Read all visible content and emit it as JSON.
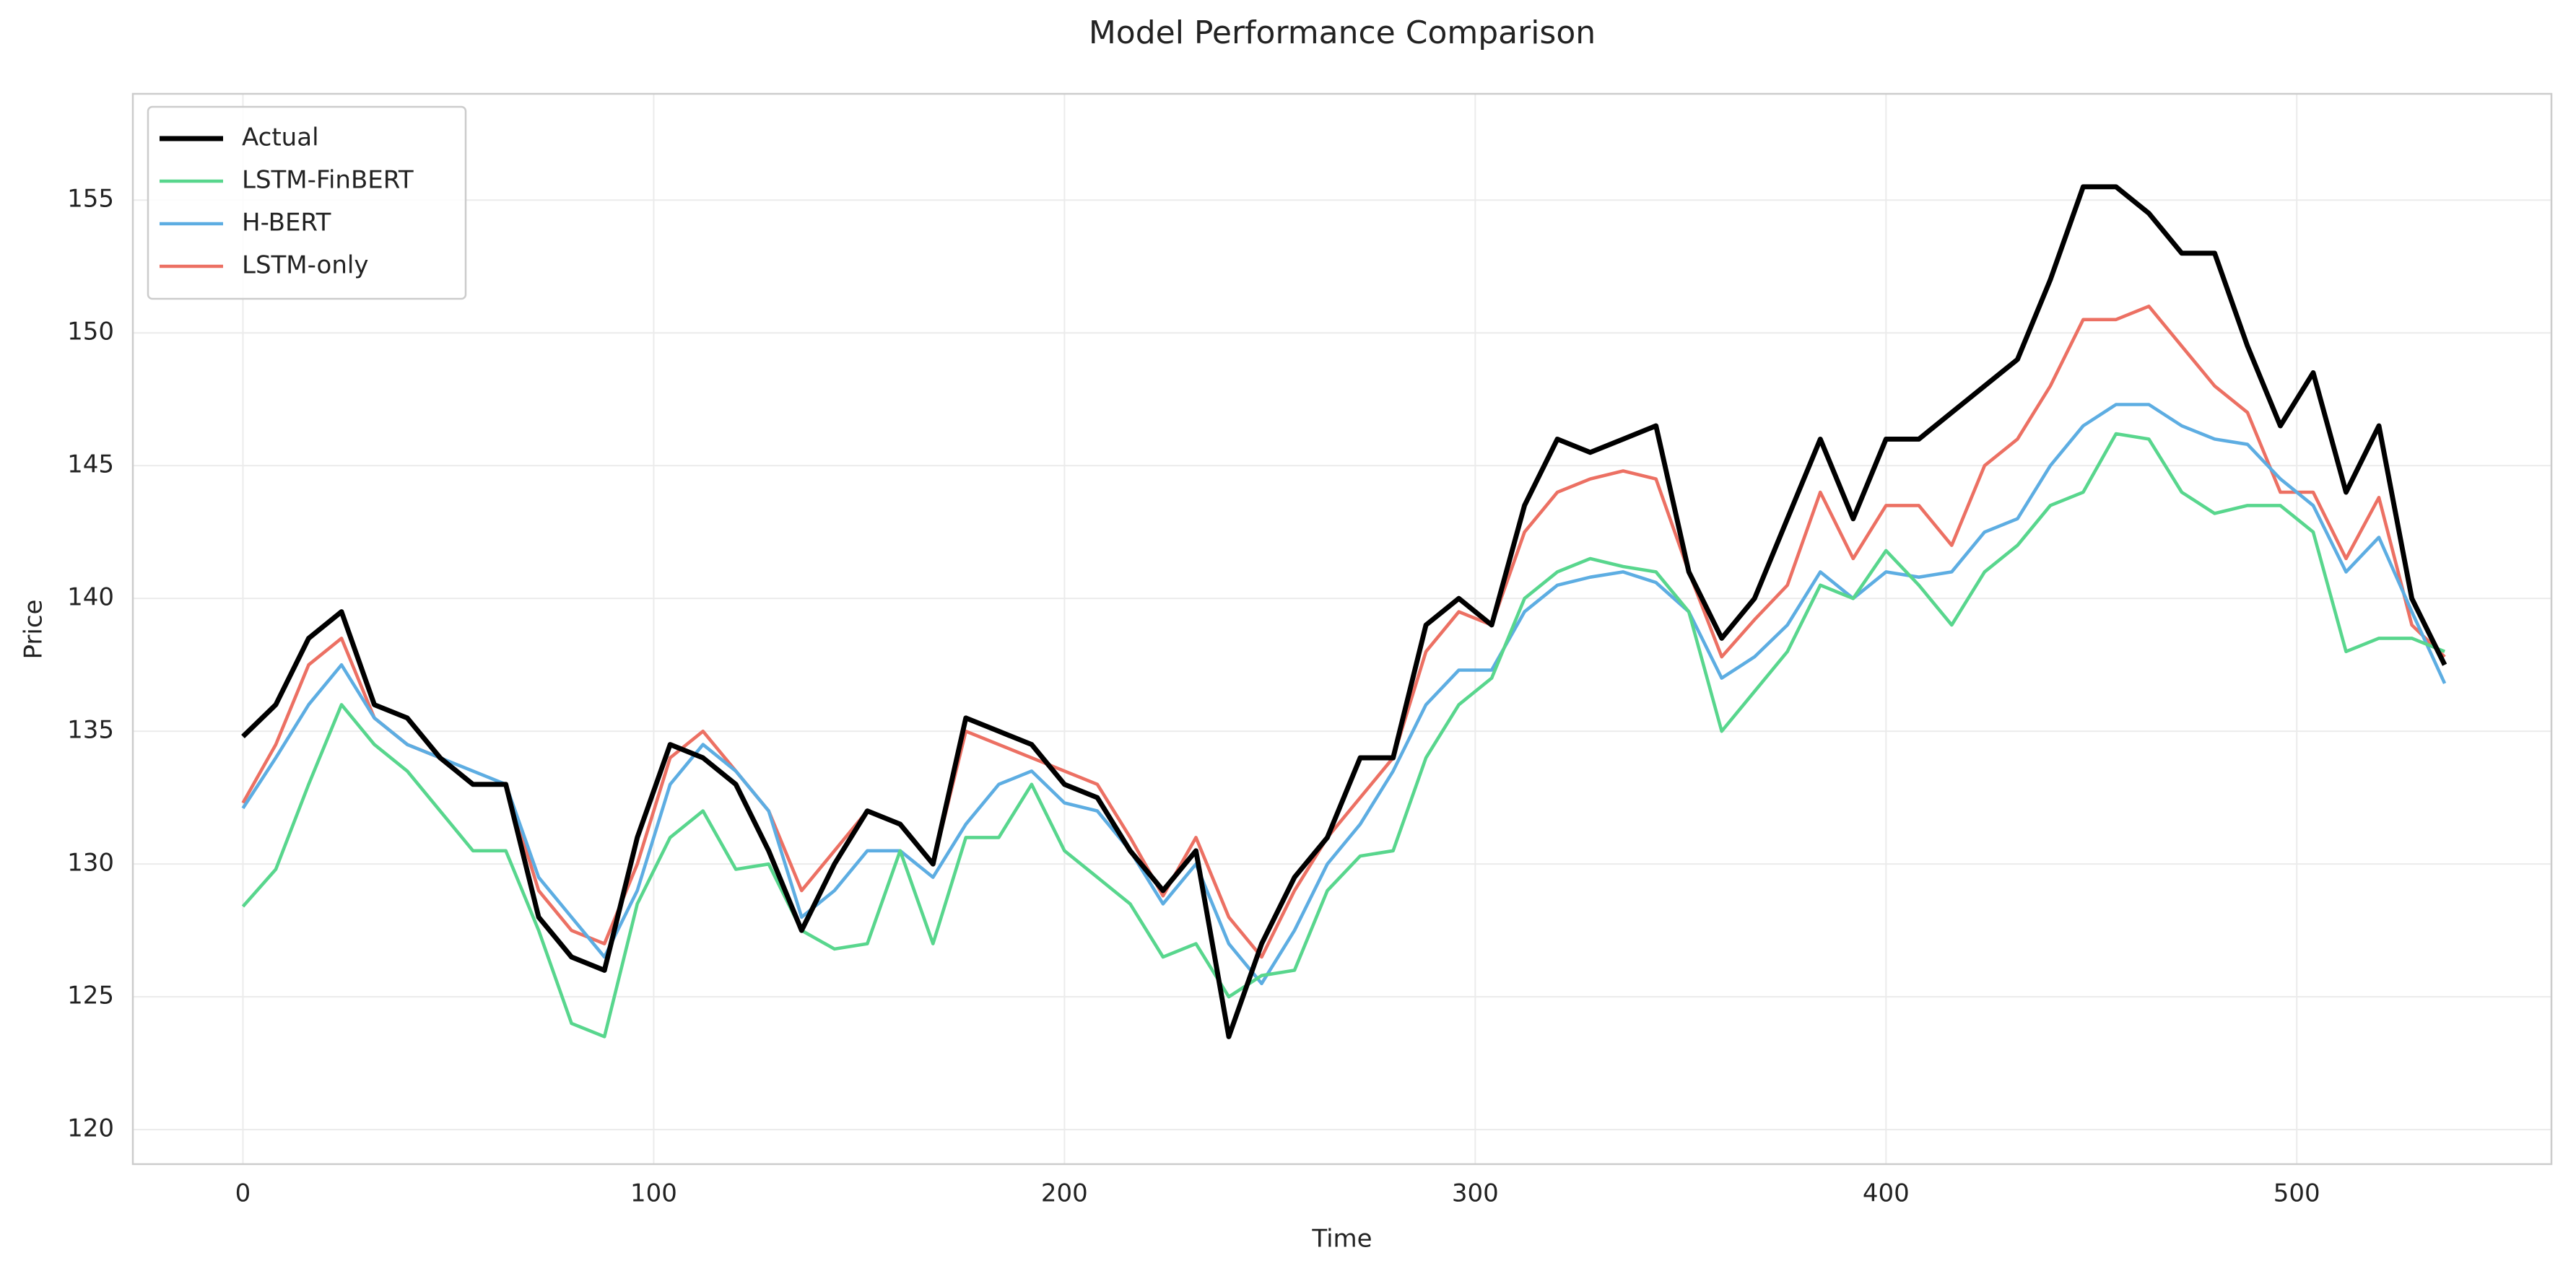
{
  "chart_data": {
    "type": "line",
    "title": "Model Performance Comparison",
    "x_label": "Time",
    "y_label": "Price",
    "x": [
      0,
      8,
      16,
      24,
      32,
      40,
      48,
      56,
      64,
      72,
      80,
      88,
      96,
      104,
      112,
      120,
      128,
      136,
      144,
      152,
      160,
      168,
      176,
      184,
      192,
      200,
      208,
      216,
      224,
      232,
      240,
      248,
      256,
      264,
      272,
      280,
      288,
      296,
      304,
      312,
      320,
      328,
      336,
      344,
      352,
      360,
      368,
      376,
      384,
      392,
      400,
      408,
      416,
      424,
      432,
      440,
      448,
      456,
      464,
      472,
      480,
      488,
      496,
      504,
      512,
      520,
      528,
      536
    ],
    "series": [
      {
        "name": "Actual",
        "color": "#000000",
        "width": 3,
        "values": [
          134.8,
          136,
          138.5,
          139.5,
          136,
          135.5,
          134,
          133,
          133,
          128,
          126.5,
          126,
          131,
          134.5,
          134,
          133,
          130.5,
          127.5,
          130,
          132,
          131.5,
          130,
          135.5,
          135,
          134.5,
          133,
          132.5,
          130.5,
          129,
          130.5,
          123.5,
          127,
          129.5,
          131,
          134,
          134,
          139,
          140,
          139,
          143.5,
          146,
          145.5,
          146,
          146.5,
          141,
          138.5,
          140,
          143,
          146,
          143,
          146,
          146,
          147,
          148,
          149,
          152,
          155.5,
          155.5,
          154.5,
          153,
          153,
          149.5,
          146.5,
          148.5,
          144,
          146.5,
          140,
          137.5
        ]
      },
      {
        "name": "LSTM-FinBERT",
        "color": "#58d68d",
        "width": 2,
        "values": [
          128.4,
          129.8,
          133,
          136,
          134.5,
          133.5,
          132,
          130.5,
          130.5,
          127.5,
          124,
          123.5,
          128.5,
          131,
          132,
          129.8,
          130,
          127.5,
          126.8,
          127,
          130.5,
          127,
          131,
          131,
          133,
          130.5,
          129.5,
          128.5,
          126.5,
          127,
          125,
          125.8,
          126,
          129,
          130.3,
          130.5,
          134,
          136,
          137,
          140,
          141,
          141.5,
          141.2,
          141,
          139.5,
          135,
          136.5,
          138,
          140.5,
          140,
          141.8,
          140.5,
          139,
          141,
          142,
          143.5,
          144,
          146.2,
          146,
          144,
          143.2,
          143.5,
          143.5,
          142.5,
          138,
          138.5,
          138.5,
          138
        ]
      },
      {
        "name": "H-BERT",
        "color": "#5dade2",
        "width": 2,
        "values": [
          132.1,
          134,
          136,
          137.5,
          135.5,
          134.5,
          134,
          133.5,
          133,
          129.5,
          128,
          126.5,
          129,
          133,
          134.5,
          133.5,
          132,
          128,
          129,
          130.5,
          130.5,
          129.5,
          131.5,
          133,
          133.5,
          132.3,
          132,
          130.5,
          128.5,
          130,
          127,
          125.5,
          127.5,
          130,
          131.5,
          133.5,
          136,
          137.3,
          137.3,
          139.5,
          140.5,
          140.8,
          141,
          140.6,
          139.5,
          137,
          137.8,
          139,
          141,
          140,
          141,
          140.8,
          141,
          142.5,
          143,
          145,
          146.5,
          147.3,
          147.3,
          146.5,
          146,
          145.8,
          144.5,
          143.5,
          141,
          142.3,
          139.5,
          136.8
        ]
      },
      {
        "name": "LSTM-only",
        "color": "#ec7063",
        "width": 2,
        "values": [
          132.3,
          134.5,
          137.5,
          138.5,
          135.5,
          134.5,
          134,
          133,
          133,
          129,
          127.5,
          127,
          130,
          134,
          135,
          133.5,
          132,
          129,
          130.5,
          132,
          131.5,
          130,
          135,
          134.5,
          134,
          133.5,
          133,
          131,
          128.8,
          131,
          128,
          126.5,
          129,
          131,
          132.5,
          134,
          138,
          139.5,
          139,
          142.5,
          144,
          144.5,
          144.8,
          144.5,
          141,
          137.8,
          139.2,
          140.5,
          144,
          141.5,
          143.5,
          143.5,
          142,
          145,
          146,
          148,
          150.5,
          150.5,
          151,
          149.5,
          148,
          147,
          144,
          144,
          141.5,
          143.8,
          139,
          137.8
        ]
      }
    ],
    "xlim": [
      -26.8,
      562
    ],
    "ylim": [
      118.7,
      159
    ],
    "xticks": [
      0,
      100,
      200,
      300,
      400,
      500
    ],
    "yticks": [
      120,
      125,
      130,
      135,
      140,
      145,
      150,
      155
    ],
    "grid": true,
    "legend": "upper left"
  }
}
